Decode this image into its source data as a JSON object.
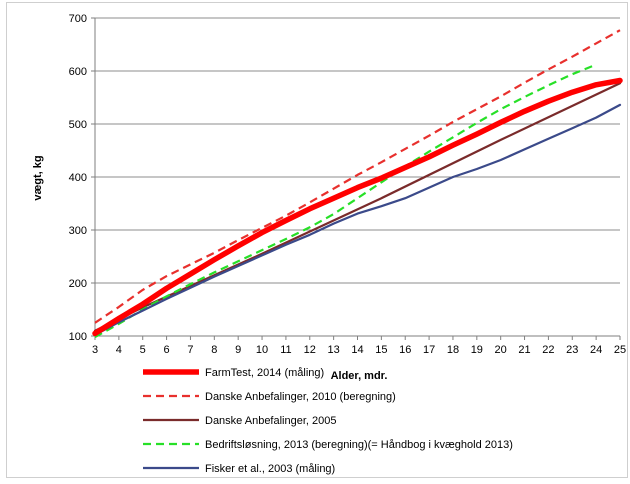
{
  "chart_data": {
    "type": "line",
    "title": "",
    "xlabel": "Alder, mdr.",
    "ylabel": "vægt, kg",
    "xlim": [
      3,
      25
    ],
    "ylim": [
      100,
      700
    ],
    "x_ticks": [
      3,
      4,
      5,
      6,
      7,
      8,
      9,
      10,
      11,
      12,
      13,
      14,
      15,
      16,
      17,
      18,
      19,
      20,
      21,
      22,
      23,
      24,
      25
    ],
    "y_ticks": [
      100,
      200,
      300,
      400,
      500,
      600,
      700
    ],
    "grid": "horizontal",
    "legend_position": "bottom",
    "series": [
      {
        "name": "FarmTest, 2014 (måling)",
        "color": "#ff0000",
        "style": "solid",
        "width": "thick",
        "points": [
          [
            3,
            105
          ],
          [
            4,
            133
          ],
          [
            5,
            160
          ],
          [
            6,
            190
          ],
          [
            7,
            217
          ],
          [
            8,
            244
          ],
          [
            9,
            270
          ],
          [
            10,
            295
          ],
          [
            11,
            318
          ],
          [
            12,
            340
          ],
          [
            13,
            360
          ],
          [
            14,
            380
          ],
          [
            15,
            398
          ],
          [
            16,
            418
          ],
          [
            17,
            438
          ],
          [
            18,
            460
          ],
          [
            19,
            481
          ],
          [
            20,
            503
          ],
          [
            21,
            524
          ],
          [
            22,
            543
          ],
          [
            23,
            560
          ],
          [
            24,
            574
          ],
          [
            25,
            582
          ]
        ]
      },
      {
        "name": "Danske Anbefalinger, 2010 (beregning)",
        "color": "#e8302d",
        "style": "dashed",
        "width": "normal",
        "points": [
          [
            3,
            125
          ],
          [
            4,
            155
          ],
          [
            5,
            187
          ],
          [
            6,
            213
          ],
          [
            7,
            235
          ],
          [
            8,
            257
          ],
          [
            9,
            281
          ],
          [
            10,
            304
          ],
          [
            11,
            327
          ],
          [
            12,
            352
          ],
          [
            13,
            378
          ],
          [
            14,
            404
          ],
          [
            15,
            428
          ],
          [
            16,
            453
          ],
          [
            17,
            478
          ],
          [
            18,
            504
          ],
          [
            19,
            528
          ],
          [
            20,
            552
          ],
          [
            21,
            578
          ],
          [
            22,
            603
          ],
          [
            23,
            627
          ],
          [
            24,
            652
          ],
          [
            25,
            677
          ]
        ]
      },
      {
        "name": "Danske Anbefalinger, 2005",
        "color": "#7a2b2b",
        "style": "solid",
        "width": "normal",
        "points": [
          [
            3,
            110
          ],
          [
            5,
            154
          ],
          [
            10,
            255
          ],
          [
            15,
            360
          ],
          [
            20,
            470
          ],
          [
            25,
            577
          ]
        ]
      },
      {
        "name": "Bedriftsløsning, 2013 (beregning)(= Håndbog i kvæghold 2013)",
        "color": "#27e027",
        "style": "dashed",
        "width": "normal",
        "points": [
          [
            3,
            98
          ],
          [
            4,
            123
          ],
          [
            5,
            150
          ],
          [
            6,
            175
          ],
          [
            7,
            198
          ],
          [
            8,
            220
          ],
          [
            9,
            241
          ],
          [
            10,
            262
          ],
          [
            11,
            283
          ],
          [
            12,
            305
          ],
          [
            13,
            330
          ],
          [
            14,
            360
          ],
          [
            15,
            390
          ],
          [
            16,
            420
          ],
          [
            17,
            448
          ],
          [
            18,
            475
          ],
          [
            19,
            502
          ],
          [
            20,
            528
          ],
          [
            21,
            551
          ],
          [
            22,
            573
          ],
          [
            23,
            594
          ],
          [
            24,
            612
          ]
        ]
      },
      {
        "name": "Fisker et al., 2003 (måling)",
        "color": "#3b4a8a",
        "style": "solid",
        "width": "normal",
        "points": [
          [
            3,
            102
          ],
          [
            4,
            126
          ],
          [
            5,
            148
          ],
          [
            6,
            170
          ],
          [
            7,
            191
          ],
          [
            8,
            212
          ],
          [
            9,
            232
          ],
          [
            10,
            252
          ],
          [
            11,
            272
          ],
          [
            12,
            291
          ],
          [
            13,
            312
          ],
          [
            14,
            331
          ],
          [
            15,
            345
          ],
          [
            16,
            360
          ],
          [
            17,
            380
          ],
          [
            18,
            400
          ],
          [
            19,
            415
          ],
          [
            20,
            432
          ],
          [
            21,
            452
          ],
          [
            22,
            472
          ],
          [
            23,
            492
          ],
          [
            24,
            512
          ],
          [
            25,
            536
          ]
        ]
      }
    ]
  }
}
